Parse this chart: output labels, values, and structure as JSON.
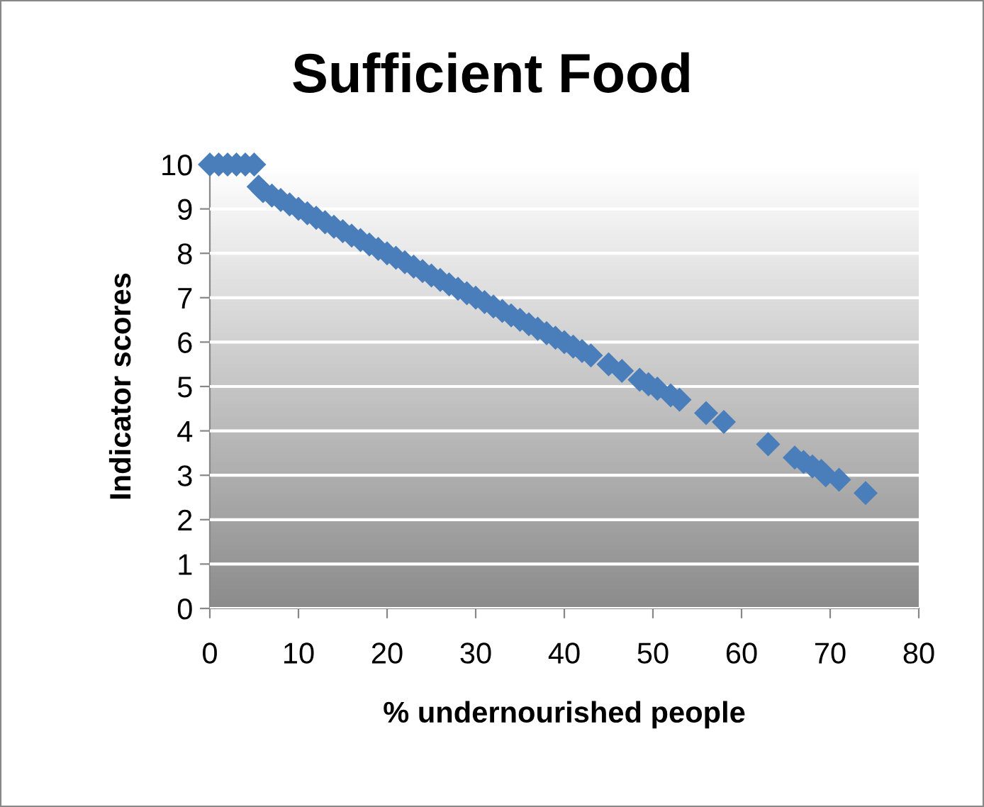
{
  "chart_data": {
    "type": "scatter",
    "title": "Sufficient Food",
    "xlabel": "% undernourished people",
    "ylabel": "Indicator scores",
    "x": [
      0,
      1,
      2,
      3,
      4,
      5,
      5.5,
      6,
      7,
      8,
      9,
      10,
      11,
      12,
      13,
      14,
      15,
      16,
      17,
      18,
      19,
      20,
      21,
      22,
      23,
      24,
      25,
      26,
      27,
      28,
      29,
      30,
      31,
      32,
      33,
      34,
      35,
      36,
      37,
      38,
      39,
      40,
      41,
      42,
      43,
      45,
      46.5,
      48.5,
      49.5,
      50.5,
      52,
      53,
      56,
      58,
      63,
      66,
      67,
      68,
      69,
      69.5,
      71,
      74
    ],
    "values": [
      10,
      10,
      10,
      10,
      10,
      10,
      9.5,
      9.4,
      9.3,
      9.2,
      9.1,
      9.0,
      8.9,
      8.8,
      8.7,
      8.6,
      8.5,
      8.4,
      8.3,
      8.2,
      8.1,
      8.0,
      7.9,
      7.8,
      7.7,
      7.6,
      7.5,
      7.4,
      7.3,
      7.2,
      7.1,
      7.0,
      6.9,
      6.8,
      6.7,
      6.6,
      6.5,
      6.4,
      6.3,
      6.2,
      6.1,
      6.0,
      5.9,
      5.8,
      5.7,
      5.5,
      5.35,
      5.15,
      5.05,
      4.95,
      4.8,
      4.7,
      4.4,
      4.2,
      3.7,
      3.4,
      3.3,
      3.2,
      3.1,
      3.0,
      2.9,
      2.6
    ],
    "color": "#4a7ebb",
    "marker": "diamond",
    "xlim": [
      0,
      80
    ],
    "ylim": [
      0,
      10
    ],
    "xticks": [
      0,
      10,
      20,
      30,
      40,
      50,
      60,
      70,
      80
    ],
    "yticks": [
      0,
      1,
      2,
      3,
      4,
      5,
      6,
      7,
      8,
      9,
      10
    ],
    "grid": "y",
    "legend": false
  }
}
